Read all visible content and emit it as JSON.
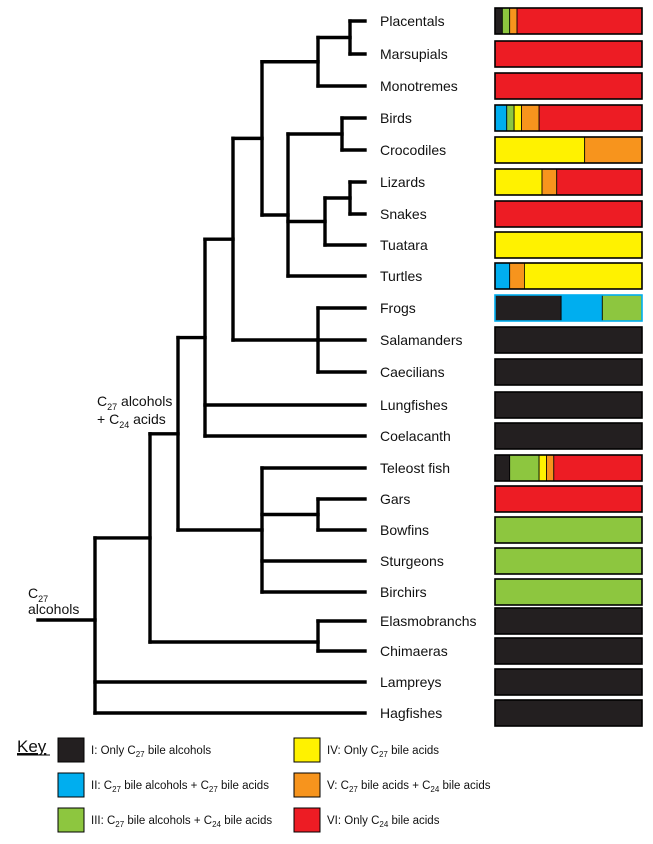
{
  "colors": {
    "I": "#231f20",
    "II": "#00aeef",
    "III": "#8dc63f",
    "IV": "#fff200",
    "V": "#f7941d",
    "VI": "#ed1c24"
  },
  "taxa": [
    {
      "name": "Placentals",
      "composition": [
        [
          "I",
          0.05
        ],
        [
          "III",
          0.05
        ],
        [
          "V",
          0.05
        ],
        [
          "VI",
          0.85
        ]
      ]
    },
    {
      "name": "Marsupials",
      "composition": [
        [
          "VI",
          1
        ]
      ]
    },
    {
      "name": "Monotremes",
      "composition": [
        [
          "VI",
          1
        ]
      ]
    },
    {
      "name": "Birds",
      "composition": [
        [
          "II",
          0.08
        ],
        [
          "III",
          0.05
        ],
        [
          "IV",
          0.05
        ],
        [
          "V",
          0.12
        ],
        [
          "VI",
          0.7
        ]
      ]
    },
    {
      "name": "Crocodiles",
      "composition": [
        [
          "IV",
          0.61
        ],
        [
          "V",
          0.39
        ]
      ]
    },
    {
      "name": "Lizards",
      "composition": [
        [
          "IV",
          0.32
        ],
        [
          "V",
          0.1
        ],
        [
          "VI",
          0.58
        ]
      ]
    },
    {
      "name": "Snakes",
      "composition": [
        [
          "VI",
          1
        ]
      ]
    },
    {
      "name": "Tuatara",
      "composition": [
        [
          "IV",
          1
        ]
      ]
    },
    {
      "name": "Turtles",
      "composition": [
        [
          "II",
          0.1
        ],
        [
          "V",
          0.1
        ],
        [
          "IV",
          0.8
        ]
      ]
    },
    {
      "name": "Frogs",
      "composition": [
        [
          "I",
          0.45
        ],
        [
          "II",
          0.28
        ],
        [
          "III",
          0.27
        ]
      ],
      "outline": "#00aeef"
    },
    {
      "name": "Salamanders",
      "composition": [
        [
          "I",
          1
        ]
      ]
    },
    {
      "name": "Caecilians",
      "composition": [
        [
          "I",
          1
        ]
      ]
    },
    {
      "name": "Lungfishes",
      "composition": [
        [
          "I",
          1
        ]
      ]
    },
    {
      "name": "Coelacanth",
      "composition": [
        [
          "I",
          1
        ]
      ]
    },
    {
      "name": "Teleost fish",
      "composition": [
        [
          "I",
          0.1
        ],
        [
          "III",
          0.2
        ],
        [
          "IV",
          0.05
        ],
        [
          "V",
          0.05
        ],
        [
          "VI",
          0.6
        ]
      ]
    },
    {
      "name": "Gars",
      "composition": [
        [
          "VI",
          1
        ]
      ]
    },
    {
      "name": "Bowfins",
      "composition": [
        [
          "III",
          1
        ]
      ]
    },
    {
      "name": "Sturgeons",
      "composition": [
        [
          "III",
          1
        ]
      ]
    },
    {
      "name": "Birchirs",
      "composition": [
        [
          "III",
          1
        ]
      ]
    },
    {
      "name": "Elasmobranchs",
      "composition": [
        [
          "I",
          1
        ]
      ]
    },
    {
      "name": "Chimaeras",
      "composition": [
        [
          "I",
          1
        ]
      ]
    },
    {
      "name": "Lampreys",
      "composition": [
        [
          "I",
          1
        ]
      ]
    },
    {
      "name": "Hagfishes",
      "composition": [
        [
          "I",
          1
        ]
      ]
    }
  ],
  "nodes": {
    "root": {
      "line1": "C",
      "sub1": "27",
      "line2": "alcohols"
    },
    "inner": {
      "line1a": "C",
      "sub1": "27",
      "line1b": " alcohols",
      "line2a": "+ C",
      "sub2": "24",
      "line2b": " acids"
    }
  },
  "key": {
    "title": "Key",
    "items": [
      {
        "id": "I",
        "parts": [
          [
            "I: Only C",
            ""
          ],
          [
            "27",
            "sub"
          ],
          [
            " bile alcohols",
            ""
          ]
        ]
      },
      {
        "id": "II",
        "parts": [
          [
            "II: C",
            ""
          ],
          [
            "27",
            "sub"
          ],
          [
            " bile alcohols + C",
            ""
          ],
          [
            "27",
            "sub"
          ],
          [
            " bile acids",
            ""
          ]
        ]
      },
      {
        "id": "III",
        "parts": [
          [
            "III: C",
            ""
          ],
          [
            "27",
            "sub"
          ],
          [
            " bile alcohols + C",
            ""
          ],
          [
            "24",
            "sub"
          ],
          [
            " bile acids",
            ""
          ]
        ]
      },
      {
        "id": "IV",
        "parts": [
          [
            "IV: Only C",
            ""
          ],
          [
            "27",
            "sub"
          ],
          [
            " bile acids",
            ""
          ]
        ]
      },
      {
        "id": "V",
        "parts": [
          [
            "V: C",
            ""
          ],
          [
            "27",
            "sub"
          ],
          [
            " bile acids + C",
            ""
          ],
          [
            "24",
            "sub"
          ],
          [
            " bile acids",
            ""
          ]
        ]
      },
      {
        "id": "VI",
        "parts": [
          [
            "VI: Only C",
            ""
          ],
          [
            "24",
            "sub"
          ],
          [
            " bile acids",
            ""
          ]
        ]
      }
    ]
  }
}
